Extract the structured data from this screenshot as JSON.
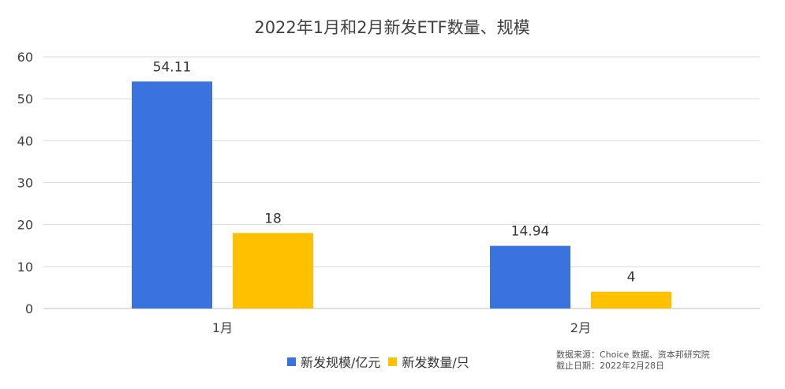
{
  "chart_data": {
    "type": "bar",
    "title": "2022年1月和2月新发ETF数量、规模",
    "categories": [
      "1月",
      "2月"
    ],
    "series": [
      {
        "name": "新发规模/亿元",
        "values": [
          54.11,
          14.94
        ],
        "labels": [
          "54.11",
          "14.94"
        ],
        "color": "#3a73e0"
      },
      {
        "name": "新发数量/只",
        "values": [
          18,
          4
        ],
        "labels": [
          "18",
          "4"
        ],
        "color": "#ffc000"
      }
    ],
    "ylim": [
      0,
      60
    ],
    "yticks": [
      0,
      10,
      20,
      30,
      40,
      50,
      60
    ],
    "grid": true,
    "legend_position": "bottom"
  },
  "source": {
    "line1": "数据来源：Choice 数据、资本邦研究院",
    "line2": "截止日期：2022年2月28日"
  }
}
